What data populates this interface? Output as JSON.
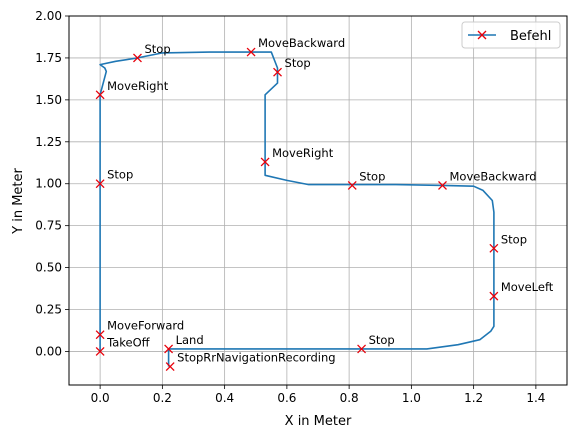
{
  "chart_data": {
    "type": "line",
    "title": "",
    "xlabel": "X in Meter",
    "ylabel": "Y in Meter",
    "xlim": [
      -0.1,
      1.5
    ],
    "ylim": [
      -0.2,
      2.0
    ],
    "xticks": [
      0.0,
      0.2,
      0.4,
      0.6,
      0.8,
      1.0,
      1.2,
      1.4
    ],
    "xtick_labels": [
      "0.0",
      "0.2",
      "0.4",
      "0.6",
      "0.8",
      "1.0",
      "1.2",
      "1.4"
    ],
    "yticks": [
      0.0,
      0.25,
      0.5,
      0.75,
      1.0,
      1.25,
      1.5,
      1.75,
      2.0
    ],
    "ytick_labels": [
      "0.00",
      "0.25",
      "0.50",
      "0.75",
      "1.00",
      "1.25",
      "1.50",
      "1.75",
      "2.00"
    ],
    "grid": true,
    "legend_position": "top-right",
    "colors": {
      "path": "#1f77b4",
      "marker": "#e8000b"
    },
    "path": {
      "x": [
        0.0,
        0.0,
        0.0,
        0.0,
        0.0,
        0.0,
        0.02,
        0.015,
        0.0,
        0.05,
        0.12,
        0.2,
        0.35,
        0.48,
        0.55,
        0.57,
        0.57,
        0.53,
        0.53,
        0.53,
        0.53,
        0.6,
        0.67,
        0.8,
        0.95,
        1.1,
        1.2,
        1.23,
        1.26,
        1.265,
        1.265,
        1.265,
        1.265,
        1.265,
        1.255,
        1.22,
        1.15,
        1.05,
        0.84,
        0.6,
        0.4,
        0.22,
        0.22,
        0.22
      ],
      "y": [
        0.0,
        0.1,
        0.5,
        1.0,
        1.3,
        1.53,
        1.67,
        1.69,
        1.71,
        1.73,
        1.75,
        1.78,
        1.785,
        1.785,
        1.785,
        1.69,
        1.6,
        1.53,
        1.3,
        1.13,
        1.05,
        1.02,
        0.995,
        0.995,
        0.995,
        0.99,
        0.985,
        0.96,
        0.9,
        0.83,
        0.6,
        0.4,
        0.3,
        0.15,
        0.12,
        0.07,
        0.04,
        0.015,
        0.015,
        0.015,
        0.015,
        0.015,
        0.0,
        -0.09
      ]
    },
    "series": [
      {
        "name": "Befehl",
        "marker": "x",
        "points": [
          {
            "x": 0.0,
            "y": 0.0,
            "label": "TakeOff"
          },
          {
            "x": 0.0,
            "y": 0.1,
            "label": "MoveForward"
          },
          {
            "x": 0.0,
            "y": 1.0,
            "label": "Stop"
          },
          {
            "x": 0.0,
            "y": 1.53,
            "label": "MoveRight"
          },
          {
            "x": 0.12,
            "y": 1.75,
            "label": "Stop"
          },
          {
            "x": 0.485,
            "y": 1.785,
            "label": "MoveBackward"
          },
          {
            "x": 0.57,
            "y": 1.665,
            "label": "Stop"
          },
          {
            "x": 0.53,
            "y": 1.13,
            "label": "MoveRight"
          },
          {
            "x": 0.81,
            "y": 0.99,
            "label": "Stop"
          },
          {
            "x": 1.1,
            "y": 0.99,
            "label": "MoveBackward"
          },
          {
            "x": 1.265,
            "y": 0.615,
            "label": "Stop"
          },
          {
            "x": 1.265,
            "y": 0.33,
            "label": "MoveLeft"
          },
          {
            "x": 0.84,
            "y": 0.015,
            "label": "Stop"
          },
          {
            "x": 0.22,
            "y": 0.015,
            "label": "Land"
          },
          {
            "x": 0.225,
            "y": -0.09,
            "label": "StopRrNavigationRecording"
          }
        ]
      }
    ]
  }
}
